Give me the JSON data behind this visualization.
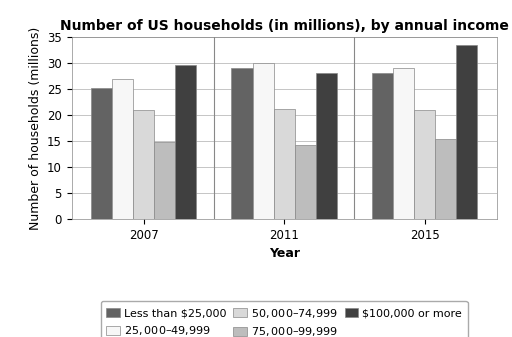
{
  "title": "Number of US households (in millions), by annual income",
  "xlabel": "Year",
  "ylabel": "Number of households (millions)",
  "years": [
    "2007",
    "2011",
    "2015"
  ],
  "categories": [
    "Less than $25,000",
    "$25,000–$49,999",
    "$50,000–$74,999",
    "$75,000–$99,999",
    "$100,000 or more"
  ],
  "values": {
    "Less than $25,000": [
      25.3,
      29.0,
      28.1
    ],
    "$25,000–$49,999": [
      27.0,
      30.0,
      29.0
    ],
    "$50,000–$74,999": [
      21.0,
      21.2,
      21.0
    ],
    "$75,000–$99,999": [
      14.8,
      14.2,
      15.3
    ],
    "$100,000 or more": [
      29.7,
      28.0,
      33.4
    ]
  },
  "colors": {
    "Less than $25,000": "#636363",
    "$25,000–$49,999": "#f7f7f7",
    "$50,000–$74,999": "#d9d9d9",
    "$75,000–$99,999": "#bdbdbd",
    "$100,000 or more": "#404040"
  },
  "bar_edge_color": "#888888",
  "ylim": [
    0,
    35
  ],
  "yticks": [
    0,
    5,
    10,
    15,
    20,
    25,
    30,
    35
  ],
  "background_color": "#ffffff",
  "grid_color": "#bbbbbb",
  "title_fontsize": 10,
  "axis_label_fontsize": 9,
  "tick_fontsize": 8.5,
  "legend_fontsize": 8,
  "group_width": 0.75
}
